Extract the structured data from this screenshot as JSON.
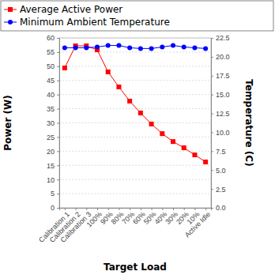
{
  "chart_data": {
    "type": "line",
    "x_label": "Target Load",
    "y_label": "Power (W)",
    "y2_label": "Temperature  (C)",
    "categories": [
      "Calibration 1",
      "Calibration 2",
      "Calibration 3",
      "100%",
      "90%",
      "80%",
      "70%",
      "60%",
      "50%",
      "40%",
      "30%",
      "20%",
      "10%",
      "Active Idle"
    ],
    "series": [
      {
        "name": "Average Active Power",
        "color": "#ff0000",
        "marker": "square",
        "values": [
          49.4,
          57.2,
          57.2,
          55.8,
          48.0,
          42.7,
          37.7,
          33.5,
          29.6,
          26.2,
          23.4,
          21.2,
          18.7,
          16.2
        ]
      },
      {
        "name": "Minimum Ambient Temperature",
        "color": "#0000ff",
        "marker": "circle",
        "axis": "y2",
        "values": [
          21.2,
          21.2,
          21.2,
          21.3,
          21.5,
          21.5,
          21.2,
          21.1,
          21.1,
          21.3,
          21.5,
          21.3,
          21.2,
          21.1
        ]
      }
    ],
    "ylim": [
      0,
      60
    ],
    "yticks": [
      0,
      5,
      10,
      15,
      20,
      25,
      30,
      35,
      40,
      45,
      50,
      55,
      60
    ],
    "y2lim": [
      0,
      22.5
    ],
    "y2ticks": [
      {
        "value": 0,
        "label": "0.0"
      },
      2.5,
      {
        "value": 5,
        "label": "5.0"
      },
      7.5,
      {
        "value": 10,
        "label": "10.0"
      },
      12.5,
      {
        "value": 15,
        "label": "15.0"
      },
      17.5,
      {
        "value": 20,
        "label": "20.0"
      },
      22.5
    ],
    "grid": true,
    "legend": "top"
  }
}
